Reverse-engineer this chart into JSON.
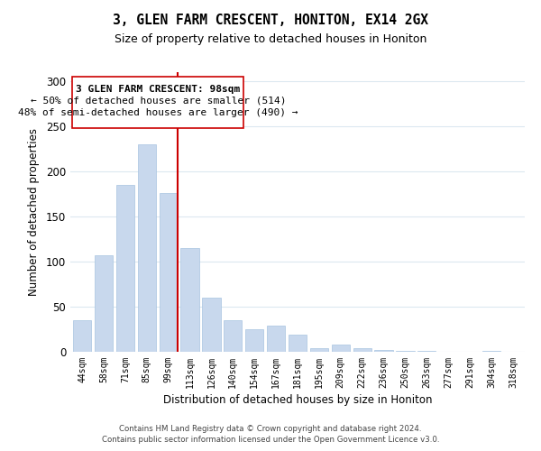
{
  "title": "3, GLEN FARM CRESCENT, HONITON, EX14 2GX",
  "subtitle": "Size of property relative to detached houses in Honiton",
  "xlabel": "Distribution of detached houses by size in Honiton",
  "ylabel": "Number of detached properties",
  "bar_color": "#c8d8ed",
  "bar_edge_color": "#a8c4e0",
  "categories": [
    "44sqm",
    "58sqm",
    "71sqm",
    "85sqm",
    "99sqm",
    "113sqm",
    "126sqm",
    "140sqm",
    "154sqm",
    "167sqm",
    "181sqm",
    "195sqm",
    "209sqm",
    "222sqm",
    "236sqm",
    "250sqm",
    "263sqm",
    "277sqm",
    "291sqm",
    "304sqm",
    "318sqm"
  ],
  "values": [
    35,
    107,
    185,
    230,
    176,
    115,
    60,
    35,
    25,
    29,
    19,
    4,
    8,
    4,
    2,
    1,
    1,
    0,
    0,
    1,
    0
  ],
  "vline_color": "#cc0000",
  "vline_bar_index": 4,
  "ylim": [
    0,
    310
  ],
  "yticks": [
    0,
    50,
    100,
    150,
    200,
    250,
    300
  ],
  "annotation_title": "3 GLEN FARM CRESCENT: 98sqm",
  "annotation_line1": "← 50% of detached houses are smaller (514)",
  "annotation_line2": "48% of semi-detached houses are larger (490) →",
  "footer1": "Contains HM Land Registry data © Crown copyright and database right 2024.",
  "footer2": "Contains public sector information licensed under the Open Government Licence v3.0.",
  "background_color": "#ffffff",
  "grid_color": "#dce8f0"
}
